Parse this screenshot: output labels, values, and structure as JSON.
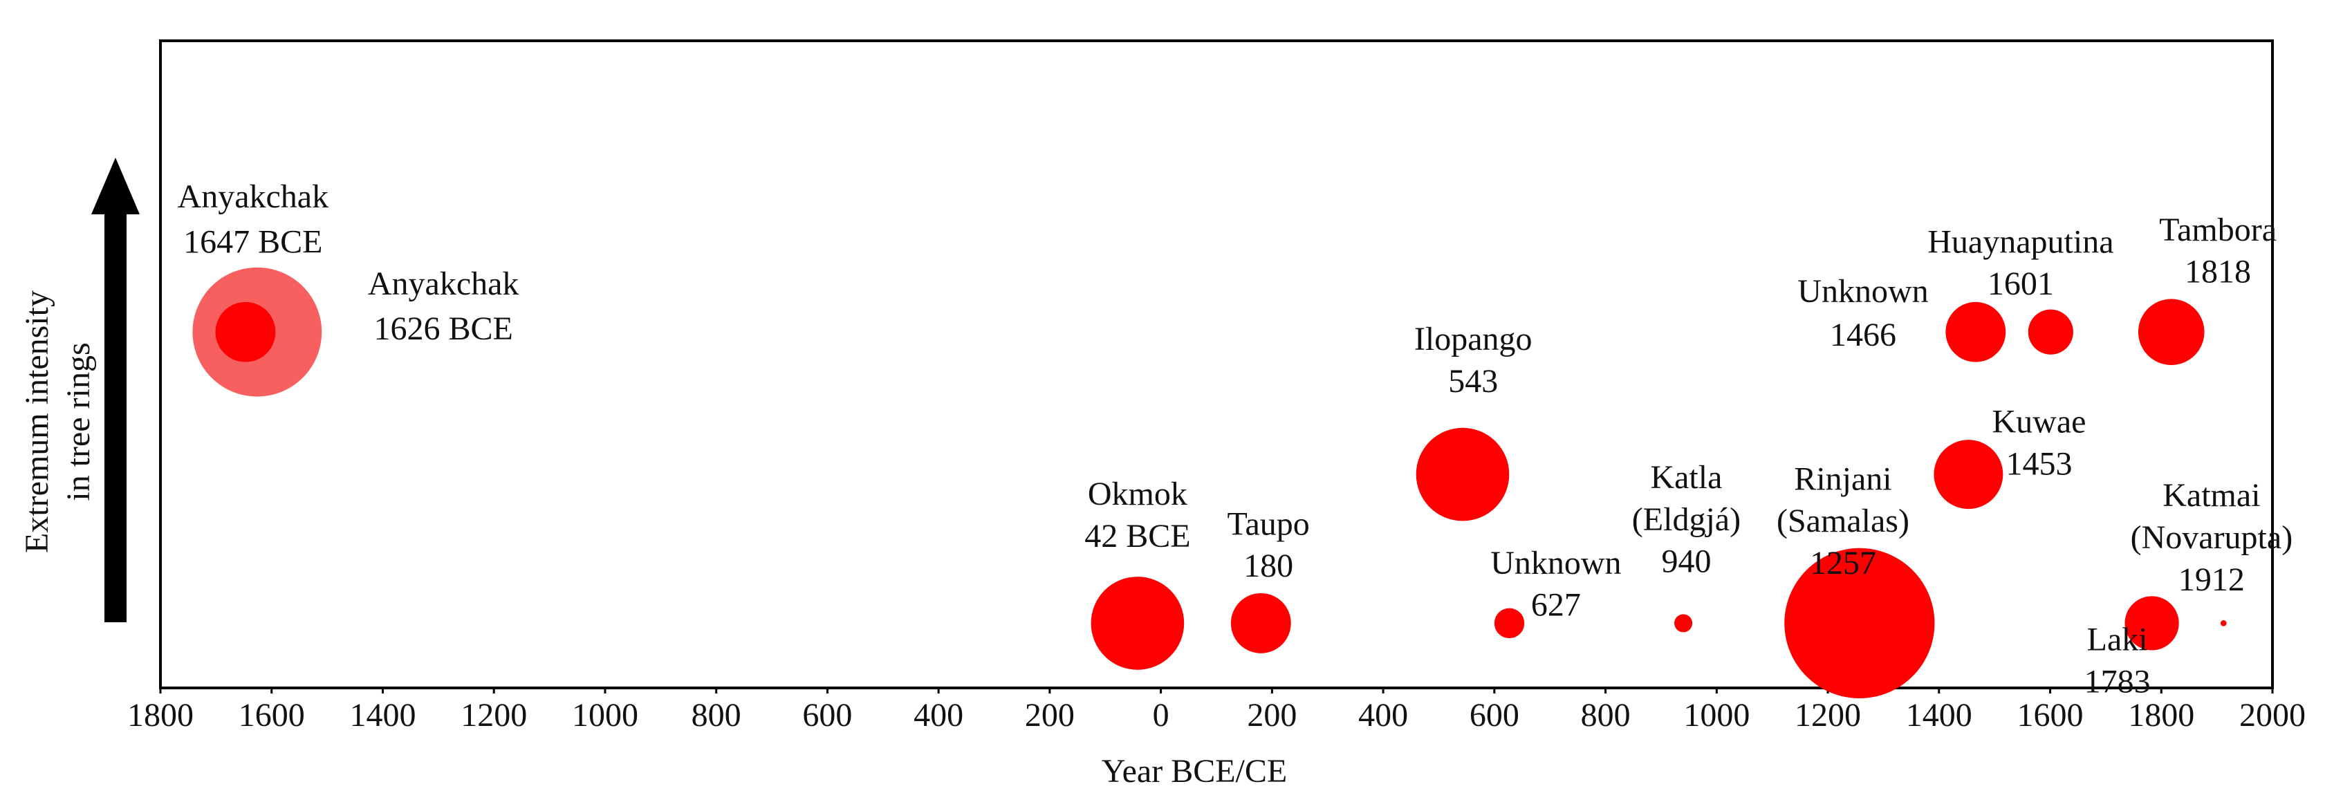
{
  "chart_data": {
    "type": "bubble",
    "x_label": "Year BCE/CE",
    "y_label": [
      "Extremum intensity",
      "in tree rings"
    ],
    "xlim": [
      -1800,
      2000
    ],
    "xticks": [
      {
        "value": -1800,
        "label": "1800"
      },
      {
        "value": -1600,
        "label": "1600"
      },
      {
        "value": -1400,
        "label": "1400"
      },
      {
        "value": -1200,
        "label": "1200"
      },
      {
        "value": -1000,
        "label": "1000"
      },
      {
        "value": -800,
        "label": "800"
      },
      {
        "value": -600,
        "label": "600"
      },
      {
        "value": -400,
        "label": "400"
      },
      {
        "value": -200,
        "label": "200"
      },
      0,
      200,
      400,
      600,
      800,
      1000,
      1200,
      1400,
      1600,
      1800,
      2000
    ],
    "ylim": [
      0,
      10
    ],
    "x": [
      -1626,
      -1647,
      -42,
      180,
      543,
      627,
      940,
      1257,
      1466,
      1601,
      1818,
      1453,
      1783,
      1912
    ],
    "values": [
      5.5,
      5.5,
      1,
      1,
      3.3,
      1,
      1,
      1,
      5.5,
      5.5,
      5.5,
      3.3,
      1,
      1
    ],
    "sizes": [
      43,
      20,
      31,
      20,
      31,
      10,
      6,
      50,
      20,
      15,
      22,
      23,
      18,
      2
    ],
    "colors": [
      "#f86060",
      "#ff0000",
      "#ff0000",
      "#ff0000",
      "#ff0000",
      "#ff0000",
      "#ff0000",
      "#ff0000",
      "#ff0000",
      "#ff0000",
      "#ff0000",
      "#ff0000",
      "#ff0000",
      "#ff0000"
    ],
    "labels": [
      [
        "Anyakchak",
        "1626 BCE"
      ],
      [
        "Anyakchak",
        "1647 BCE"
      ],
      [
        "Okmok",
        "42 BCE"
      ],
      [
        "Taupo",
        "180"
      ],
      [
        "Ilopango",
        "543"
      ],
      [
        "Unknown",
        "627"
      ],
      [
        "Katla",
        "(Eldgjá)",
        "940"
      ],
      [
        "Rinjani",
        "(Samalas)",
        "1257"
      ],
      [
        "Unknown",
        "1466"
      ],
      [
        "Huaynaputina",
        "1601"
      ],
      [
        "Tambora",
        "1818"
      ],
      [
        "Kuwae",
        "1453"
      ],
      [
        "Laki",
        "1783"
      ],
      [
        "Katmai",
        "(Novarupta)",
        "1912"
      ]
    ]
  }
}
